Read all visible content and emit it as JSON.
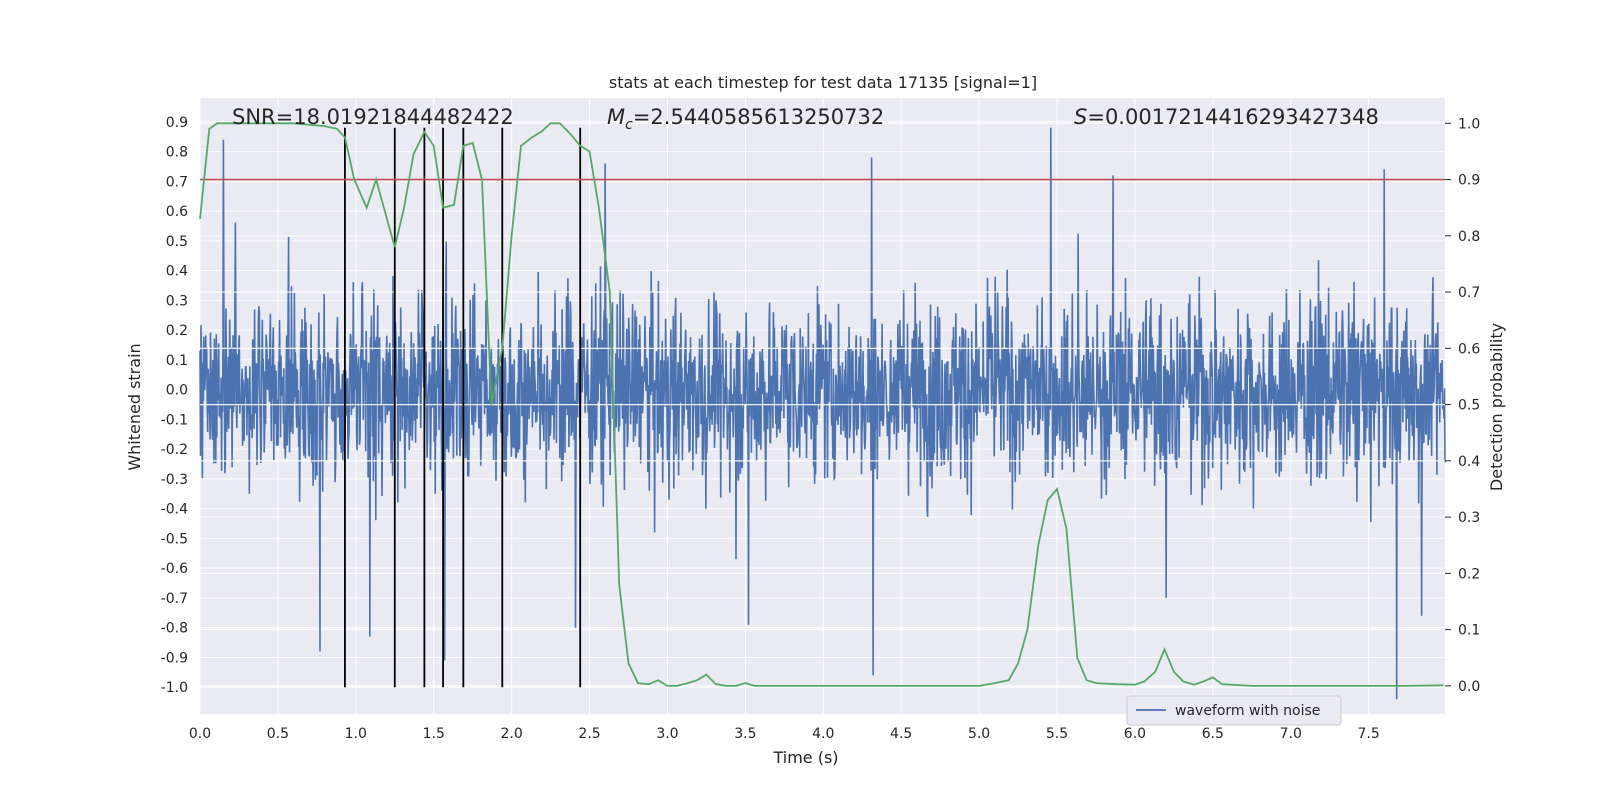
{
  "chart_data": {
    "type": "line",
    "title": "stats at each timestep for test data 17135 [signal=1]",
    "xlabel": "Time (s)",
    "ylabel": "Whitened strain",
    "y2label": "Detection probability",
    "xlim": [
      0.0,
      7.99
    ],
    "ylim": [
      -1.09,
      0.98
    ],
    "y2lim": [
      -0.05,
      1.045
    ],
    "xticks": [
      "0.0",
      "0.5",
      "1.0",
      "1.5",
      "2.0",
      "2.5",
      "3.0",
      "3.5",
      "4.0",
      "4.5",
      "5.0",
      "5.5",
      "6.0",
      "6.5",
      "7.0",
      "7.5"
    ],
    "yticks": [
      "0.9",
      "0.8",
      "0.7",
      "0.6",
      "0.5",
      "0.4",
      "0.3",
      "0.2",
      "0.1",
      "0.0",
      "-0.1",
      "-0.2",
      "-0.3",
      "-0.4",
      "-0.5",
      "-0.6",
      "-0.7",
      "-0.8",
      "-0.9",
      "-1.0"
    ],
    "y2ticks": [
      "1.0",
      "0.9",
      "0.8",
      "0.7",
      "0.6",
      "0.5",
      "0.4",
      "0.3",
      "0.2",
      "0.1",
      "0.0"
    ],
    "annotations": {
      "snr": "SNR=18.01921844482422",
      "mc_symbol": "M",
      "mc_sub": "c",
      "mc_value": "=2.5440585613250732",
      "s_symbol": "S",
      "s_value": "=0.0017214416293427348"
    },
    "legend": [
      {
        "label": "waveform with noise",
        "color": "#4c72b0"
      }
    ],
    "threshold_y2": 0.9,
    "threshold_color": "#c44e52",
    "waveform_color": "#4c72b0",
    "probability_color": "#55a868",
    "vline_color": "#000000",
    "vlines_x": [
      0.93,
      1.25,
      1.44,
      1.56,
      1.69,
      1.94,
      2.44
    ],
    "vline_range": [
      -1.0,
      0.88
    ],
    "waveform_envelope": {
      "typical_abs": 0.42,
      "extreme_spikes": [
        {
          "x": 0.15,
          "y": 0.84
        },
        {
          "x": 0.77,
          "y": -0.88
        },
        {
          "x": 1.09,
          "y": -0.83
        },
        {
          "x": 1.57,
          "y": -0.91
        },
        {
          "x": 2.41,
          "y": -0.8
        },
        {
          "x": 2.6,
          "y": 0.76
        },
        {
          "x": 3.52,
          "y": -0.79
        },
        {
          "x": 4.31,
          "y": 0.78
        },
        {
          "x": 4.32,
          "y": -0.96
        },
        {
          "x": 5.46,
          "y": 0.88
        },
        {
          "x": 5.86,
          "y": 0.72
        },
        {
          "x": 6.2,
          "y": -0.7
        },
        {
          "x": 7.6,
          "y": 0.74
        },
        {
          "x": 7.68,
          "y": -1.04
        },
        {
          "x": 7.84,
          "y": -0.76
        }
      ]
    },
    "probability": {
      "x": [
        0.0,
        0.06,
        0.11,
        0.2,
        0.4,
        0.6,
        0.8,
        0.88,
        0.93,
        0.99,
        1.07,
        1.13,
        1.19,
        1.25,
        1.31,
        1.37,
        1.44,
        1.5,
        1.56,
        1.63,
        1.69,
        1.75,
        1.81,
        1.87,
        1.94,
        2.0,
        2.06,
        2.13,
        2.19,
        2.25,
        2.31,
        2.38,
        2.44,
        2.5,
        2.56,
        2.63,
        2.69,
        2.75,
        2.81,
        2.88,
        2.94,
        3.0,
        3.06,
        3.13,
        3.19,
        3.25,
        3.31,
        3.38,
        3.44,
        3.5,
        3.56,
        3.63,
        3.75,
        3.88,
        4.0,
        4.25,
        4.5,
        4.75,
        5.0,
        5.1,
        5.19,
        5.25,
        5.31,
        5.38,
        5.44,
        5.5,
        5.56,
        5.63,
        5.69,
        5.75,
        5.88,
        6.0,
        6.06,
        6.13,
        6.19,
        6.25,
        6.31,
        6.38,
        6.44,
        6.5,
        6.56,
        6.75,
        7.0,
        7.25,
        7.5,
        7.75,
        7.98
      ],
      "y": [
        0.83,
        0.99,
        1.0,
        1.0,
        1.0,
        1.0,
        0.995,
        0.99,
        0.975,
        0.9,
        0.85,
        0.9,
        0.84,
        0.78,
        0.85,
        0.945,
        0.985,
        0.96,
        0.85,
        0.855,
        0.96,
        0.965,
        0.9,
        0.5,
        0.6,
        0.8,
        0.96,
        0.975,
        0.985,
        1.0,
        1.0,
        0.98,
        0.96,
        0.95,
        0.85,
        0.7,
        0.18,
        0.04,
        0.005,
        0.003,
        0.01,
        0.0,
        0.0,
        0.005,
        0.01,
        0.02,
        0.003,
        0.0,
        0.0,
        0.005,
        0.0,
        0.0,
        0.0,
        0.0,
        0.0,
        0.0,
        0.0,
        0.0,
        0.0,
        0.005,
        0.01,
        0.04,
        0.1,
        0.25,
        0.33,
        0.35,
        0.28,
        0.05,
        0.01,
        0.005,
        0.003,
        0.002,
        0.008,
        0.025,
        0.065,
        0.025,
        0.008,
        0.002,
        0.008,
        0.015,
        0.003,
        0.0,
        0.0,
        0.0,
        0.0,
        0.0,
        0.001
      ]
    }
  }
}
